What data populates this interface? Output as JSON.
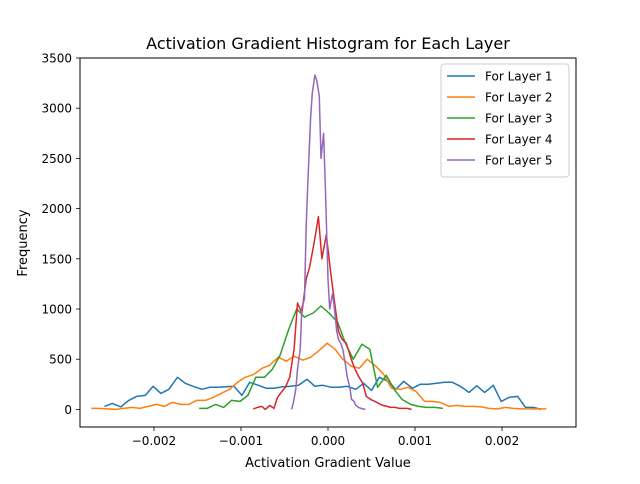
{
  "chart_data": {
    "type": "line",
    "title": "Activation Gradient Histogram for Each Layer",
    "xlabel": "Activation Gradient Value",
    "ylabel": "Frequency",
    "xlim": [
      -0.00285,
      0.00285
    ],
    "ylim": [
      -175,
      3500
    ],
    "x_ticks": [
      -0.002,
      -0.001,
      0.0,
      0.001,
      0.002
    ],
    "x_tick_labels": [
      "−0.002",
      "−0.001",
      "0.000",
      "0.001",
      "0.002"
    ],
    "y_ticks": [
      0,
      500,
      1000,
      1500,
      2000,
      2500,
      3000,
      3500
    ],
    "y_tick_labels": [
      "0",
      "500",
      "1000",
      "1500",
      "2000",
      "2500",
      "3000",
      "3500"
    ],
    "grid": false,
    "legend_position": "top-right",
    "series": [
      {
        "name": "For Layer 1",
        "color": "#1f77b4",
        "x": [
          -0.00257,
          -0.00248,
          -0.00238,
          -0.00229,
          -0.0022,
          -0.0021,
          -0.00201,
          -0.00192,
          -0.00183,
          -0.00173,
          -0.00164,
          -0.00155,
          -0.00145,
          -0.00136,
          -0.00127,
          -0.00117,
          -0.00108,
          -0.00099,
          -0.0009,
          -0.0008,
          -0.00071,
          -0.00062,
          -0.00052,
          -0.00043,
          -0.00034,
          -0.00024,
          -0.00015,
          -6e-05,
          4e-05,
          0.00013,
          0.00022,
          0.00032,
          0.00041,
          0.0005,
          0.00059,
          0.00069,
          0.00078,
          0.00087,
          0.00097,
          0.00106,
          0.00115,
          0.00125,
          0.00134,
          0.00143,
          0.00152,
          0.00162,
          0.00171,
          0.0018,
          0.0019,
          0.00199,
          0.00208,
          0.00218,
          0.00227,
          0.00236,
          0.00245
        ],
        "y": [
          30,
          60,
          25,
          90,
          130,
          140,
          230,
          160,
          200,
          320,
          260,
          230,
          200,
          220,
          220,
          225,
          230,
          140,
          270,
          240,
          210,
          210,
          225,
          230,
          240,
          300,
          230,
          240,
          220,
          220,
          230,
          200,
          260,
          190,
          320,
          280,
          200,
          280,
          210,
          250,
          250,
          260,
          270,
          270,
          230,
          170,
          235,
          170,
          240,
          80,
          120,
          130,
          20,
          20,
          0
        ]
      },
      {
        "name": "For Layer 2",
        "color": "#ff7f0e",
        "x": [
          -0.00272,
          -0.00263,
          -0.00253,
          -0.00244,
          -0.00235,
          -0.00225,
          -0.00216,
          -0.00207,
          -0.00197,
          -0.00188,
          -0.00179,
          -0.00169,
          -0.0016,
          -0.00151,
          -0.00141,
          -0.00132,
          -0.00123,
          -0.00113,
          -0.00104,
          -0.00095,
          -0.00085,
          -0.00076,
          -0.00067,
          -0.00057,
          -0.00048,
          -0.00039,
          -0.00029,
          -0.0002,
          -0.00011,
          -1e-05,
          8e-05,
          0.00017,
          0.00027,
          0.00036,
          0.00045,
          0.00055,
          0.00064,
          0.00073,
          0.00083,
          0.00092,
          0.00101,
          0.00111,
          0.0012,
          0.00129,
          0.00139,
          0.00148,
          0.00157,
          0.00167,
          0.00176,
          0.00185,
          0.00195,
          0.00204,
          0.00213,
          0.00223,
          0.00232,
          0.00241,
          0.00251
        ],
        "y": [
          10,
          10,
          5,
          0,
          10,
          20,
          10,
          30,
          50,
          30,
          70,
          50,
          50,
          90,
          90,
          120,
          160,
          200,
          270,
          320,
          350,
          410,
          440,
          520,
          480,
          530,
          490,
          520,
          580,
          660,
          600,
          500,
          430,
          410,
          500,
          430,
          350,
          210,
          200,
          220,
          180,
          80,
          80,
          70,
          30,
          40,
          30,
          30,
          25,
          10,
          5,
          20,
          10,
          5,
          5,
          5,
          5
        ]
      },
      {
        "name": "For Layer 3",
        "color": "#2ca02c",
        "x": [
          -0.00148,
          -0.00139,
          -0.00129,
          -0.0012,
          -0.00111,
          -0.00101,
          -0.00092,
          -0.00083,
          -0.00073,
          -0.00064,
          -0.00055,
          -0.00045,
          -0.00036,
          -0.00027,
          -0.00017,
          -8e-05,
          1e-05,
          0.00011,
          0.0002,
          0.00029,
          0.00039,
          0.00048,
          0.00057,
          0.00067,
          0.00076,
          0.00085,
          0.00095,
          0.00104,
          0.00113,
          0.00123,
          0.00132
        ],
        "y": [
          10,
          10,
          50,
          20,
          90,
          80,
          140,
          320,
          320,
          400,
          540,
          800,
          1000,
          920,
          960,
          1030,
          960,
          870,
          660,
          500,
          650,
          600,
          220,
          340,
          200,
          100,
          50,
          30,
          20,
          20,
          10
        ]
      },
      {
        "name": "For Layer 4",
        "color": "#d62728",
        "x": [
          -0.00086,
          -0.00081,
          -0.00076,
          -0.00072,
          -0.00067,
          -0.00062,
          -0.00058,
          -0.00053,
          -0.00049,
          -0.00044,
          -0.00039,
          -0.00035,
          -0.0003,
          -0.00025,
          -0.00021,
          -0.00016,
          -0.00011,
          -7e-05,
          -2e-05,
          3e-05,
          7e-05,
          0.00012,
          0.00016,
          0.00021,
          0.00026,
          0.0003,
          0.00035,
          0.0004,
          0.00044,
          0.00049,
          0.00054,
          0.00058,
          0.00063,
          0.00068,
          0.00072,
          0.00077,
          0.00082,
          0.00086,
          0.00091,
          0.00096
        ],
        "y": [
          5,
          20,
          30,
          0,
          40,
          10,
          120,
          180,
          220,
          320,
          600,
          1060,
          960,
          1300,
          1420,
          1660,
          1920,
          1500,
          1740,
          1370,
          1100,
          780,
          700,
          660,
          520,
          420,
          330,
          260,
          130,
          100,
          80,
          60,
          40,
          30,
          20,
          20,
          10,
          10,
          10,
          0
        ]
      },
      {
        "name": "For Layer 5",
        "color": "#9467bd",
        "x": [
          -0.00042,
          -0.0004,
          -0.00037,
          -0.00035,
          -0.00032,
          -0.0003,
          -0.00027,
          -0.00025,
          -0.00023,
          -0.0002,
          -0.00018,
          -0.00015,
          -0.00013,
          -0.0001,
          -8e-05,
          -5e-05,
          -3e-05,
          0.0,
          2e-05,
          5e-05,
          7e-05,
          0.0001,
          0.00012,
          0.00015,
          0.00017,
          0.0002,
          0.00022,
          0.00025,
          0.00027,
          0.0003,
          0.00032,
          0.00035,
          0.00038,
          0.0004,
          0.00043
        ],
        "y": [
          0,
          60,
          200,
          400,
          600,
          1020,
          1100,
          1830,
          2300,
          2900,
          3150,
          3330,
          3280,
          3120,
          2500,
          2750,
          2200,
          1300,
          1000,
          1150,
          1040,
          780,
          700,
          650,
          600,
          450,
          330,
          220,
          100,
          80,
          40,
          20,
          10,
          5,
          0
        ]
      }
    ]
  }
}
